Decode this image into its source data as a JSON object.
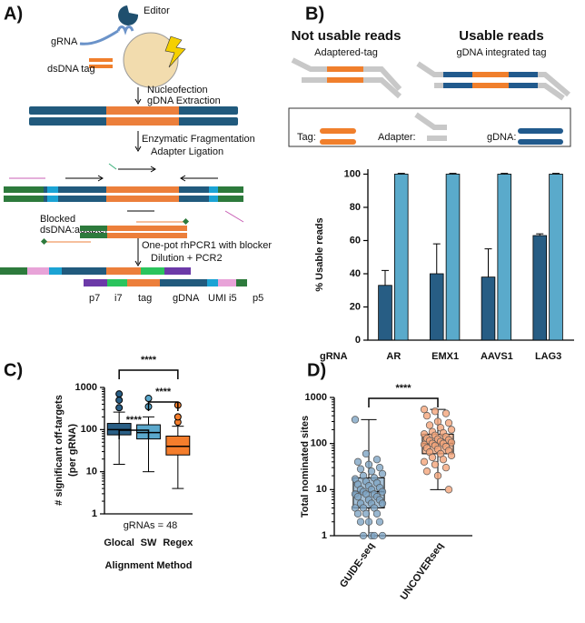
{
  "panel_labels": [
    "A)",
    "B)",
    "C)",
    "D)"
  ],
  "diagram_a": {
    "editor": "Editor",
    "grna": "gRNA",
    "tag": "dsDNA tag",
    "step1": [
      "Nucleofection",
      "gDNA Extraction"
    ],
    "step2": [
      "Enzymatic Fragmentation",
      "Adapter Ligation"
    ],
    "blocked": [
      "Blocked",
      "dsDNA:adapter"
    ],
    "step3": [
      "One-pot rhPCR1 with blocker",
      "Dilution + PCR2"
    ],
    "library": [
      "p7",
      "i7",
      "tag",
      "gDNA",
      "UMI",
      "i5",
      "p5"
    ]
  },
  "diagram_b": {
    "left_title": "Not usable reads",
    "left_sub": "Adaptered-tag",
    "right_title": "Usable reads",
    "right_sub": "gDNA integrated tag",
    "legend": [
      "Tag:",
      "Adapter:",
      "gDNA:"
    ]
  },
  "chart_data": [
    {
      "type": "bar",
      "y_label": "% Usable reads",
      "x_label": "gRNA",
      "categories": [
        "AR",
        "EMX1",
        "AAVS1",
        "LAG3"
      ],
      "series": [
        {
          "color": "#275d84",
          "values": [
            33,
            40,
            38,
            63
          ],
          "errors": [
            9,
            18,
            17,
            1
          ]
        },
        {
          "color": "#5aaacb",
          "values": [
            100,
            100,
            100,
            100
          ],
          "errors": [
            0.5,
            0.5,
            0.5,
            0.5
          ]
        }
      ],
      "ylim": [
        0,
        103
      ],
      "yticks": [
        0,
        20,
        40,
        60,
        80,
        100
      ]
    },
    {
      "type": "box",
      "log": true,
      "y_label": [
        "# significant off-targets",
        "(per gRNA)"
      ],
      "x_label": "Alignment Method",
      "annotation": "gRNAs = 48",
      "categories": [
        "Glocal",
        "SW",
        "Regex"
      ],
      "boxes": [
        {
          "color": "#2a5f86",
          "min": 15,
          "q1": 75,
          "median": 100,
          "q3": 140,
          "max": 260,
          "outliers": [
            330,
            500,
            700
          ]
        },
        {
          "color": "#5ba8cc",
          "min": 10,
          "q1": 60,
          "median": 85,
          "q3": 130,
          "max": 200,
          "outliers": [
            350,
            550
          ]
        },
        {
          "color": "#f47d2c",
          "min": 4,
          "q1": 25,
          "median": 40,
          "q3": 70,
          "max": 120,
          "outliers": [
            150,
            200,
            380
          ]
        }
      ],
      "brackets": [
        {
          "between": [
            0,
            2
          ],
          "label": "****"
        },
        {
          "between": [
            1,
            2
          ],
          "label": "****"
        },
        {
          "between": [
            0,
            1
          ],
          "label": "****"
        }
      ],
      "ylim": [
        1,
        1000
      ],
      "yticks": [
        1,
        10,
        100,
        1000
      ]
    },
    {
      "type": "box_scatter",
      "log": true,
      "y_label": "Total nominated sites",
      "categories": [
        "GUIDE-seq",
        "UNCOVERseq"
      ],
      "boxes": [
        {
          "color": "#7fa5c4",
          "min": 1,
          "q1": 4,
          "median": 9,
          "q3": 18,
          "max": 330,
          "points": [
            330,
            60,
            45,
            40,
            35,
            30,
            28,
            25,
            22,
            20,
            18,
            17,
            15,
            14,
            13,
            12,
            11,
            10,
            10,
            9,
            9,
            8,
            8,
            8,
            7,
            7,
            6,
            6,
            5,
            5,
            5,
            4,
            4,
            4,
            3,
            3,
            3,
            2,
            2,
            2,
            1,
            1,
            1,
            1
          ]
        },
        {
          "color": "#f4a57a",
          "min": 10,
          "q1": 60,
          "median": 100,
          "q3": 160,
          "max": 550,
          "points": [
            550,
            500,
            450,
            400,
            300,
            280,
            250,
            220,
            200,
            180,
            170,
            160,
            150,
            140,
            130,
            125,
            120,
            115,
            110,
            105,
            100,
            100,
            95,
            90,
            85,
            80,
            75,
            70,
            65,
            60,
            55,
            50,
            45,
            40,
            35,
            30,
            25,
            20,
            10
          ]
        }
      ],
      "brackets": [
        {
          "between": [
            0,
            1
          ],
          "label": "****"
        }
      ],
      "ylim": [
        1,
        1000
      ],
      "yticks": [
        1,
        10,
        100,
        1000
      ]
    }
  ]
}
